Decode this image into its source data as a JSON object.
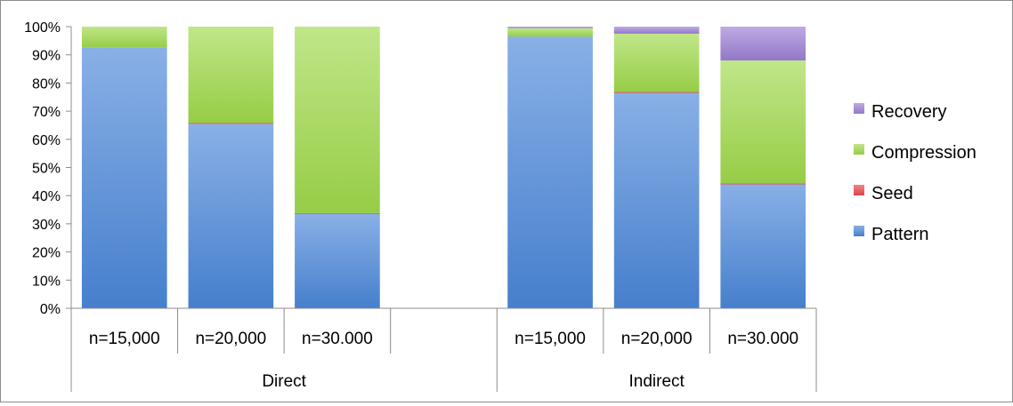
{
  "chart_data": {
    "type": "bar",
    "stacked": true,
    "percent": true,
    "title": "",
    "xlabel": "",
    "ylabel": "",
    "ylim": [
      0,
      100
    ],
    "y_ticks": [
      "0%",
      "10%",
      "20%",
      "30%",
      "40%",
      "50%",
      "60%",
      "70%",
      "80%",
      "90%",
      "100%"
    ],
    "groups": [
      {
        "label": "Direct",
        "categories": [
          "n=15,000",
          "n=20,000",
          "n=30.000",
          ""
        ]
      },
      {
        "label": "Indirect",
        "categories": [
          "n=15,000",
          "n=20,000",
          "n=30.000"
        ]
      }
    ],
    "categories": [
      "n=15,000",
      "n=20,000",
      "n=30.000",
      "",
      "n=15,000",
      "n=20,000",
      "n=30.000"
    ],
    "series": [
      {
        "name": "Pattern",
        "color": "#4a86d8",
        "values": [
          92.5,
          65.5,
          33.5,
          null,
          96.5,
          76.5,
          44
        ]
      },
      {
        "name": "Seed",
        "color": "#e8474a",
        "values": [
          0,
          0.3,
          0.3,
          null,
          0,
          0.3,
          0.3
        ]
      },
      {
        "name": "Compression",
        "color": "#9ed84a",
        "values": [
          7.5,
          34.2,
          66.2,
          null,
          3,
          20.7,
          43.7
        ]
      },
      {
        "name": "Recovery",
        "color": "#9b7dd4",
        "values": [
          0,
          0,
          0,
          null,
          0.5,
          2.5,
          12
        ]
      }
    ],
    "legend": {
      "position": "right",
      "order": [
        "Recovery",
        "Compression",
        "Seed",
        "Pattern"
      ]
    },
    "grid": false
  }
}
